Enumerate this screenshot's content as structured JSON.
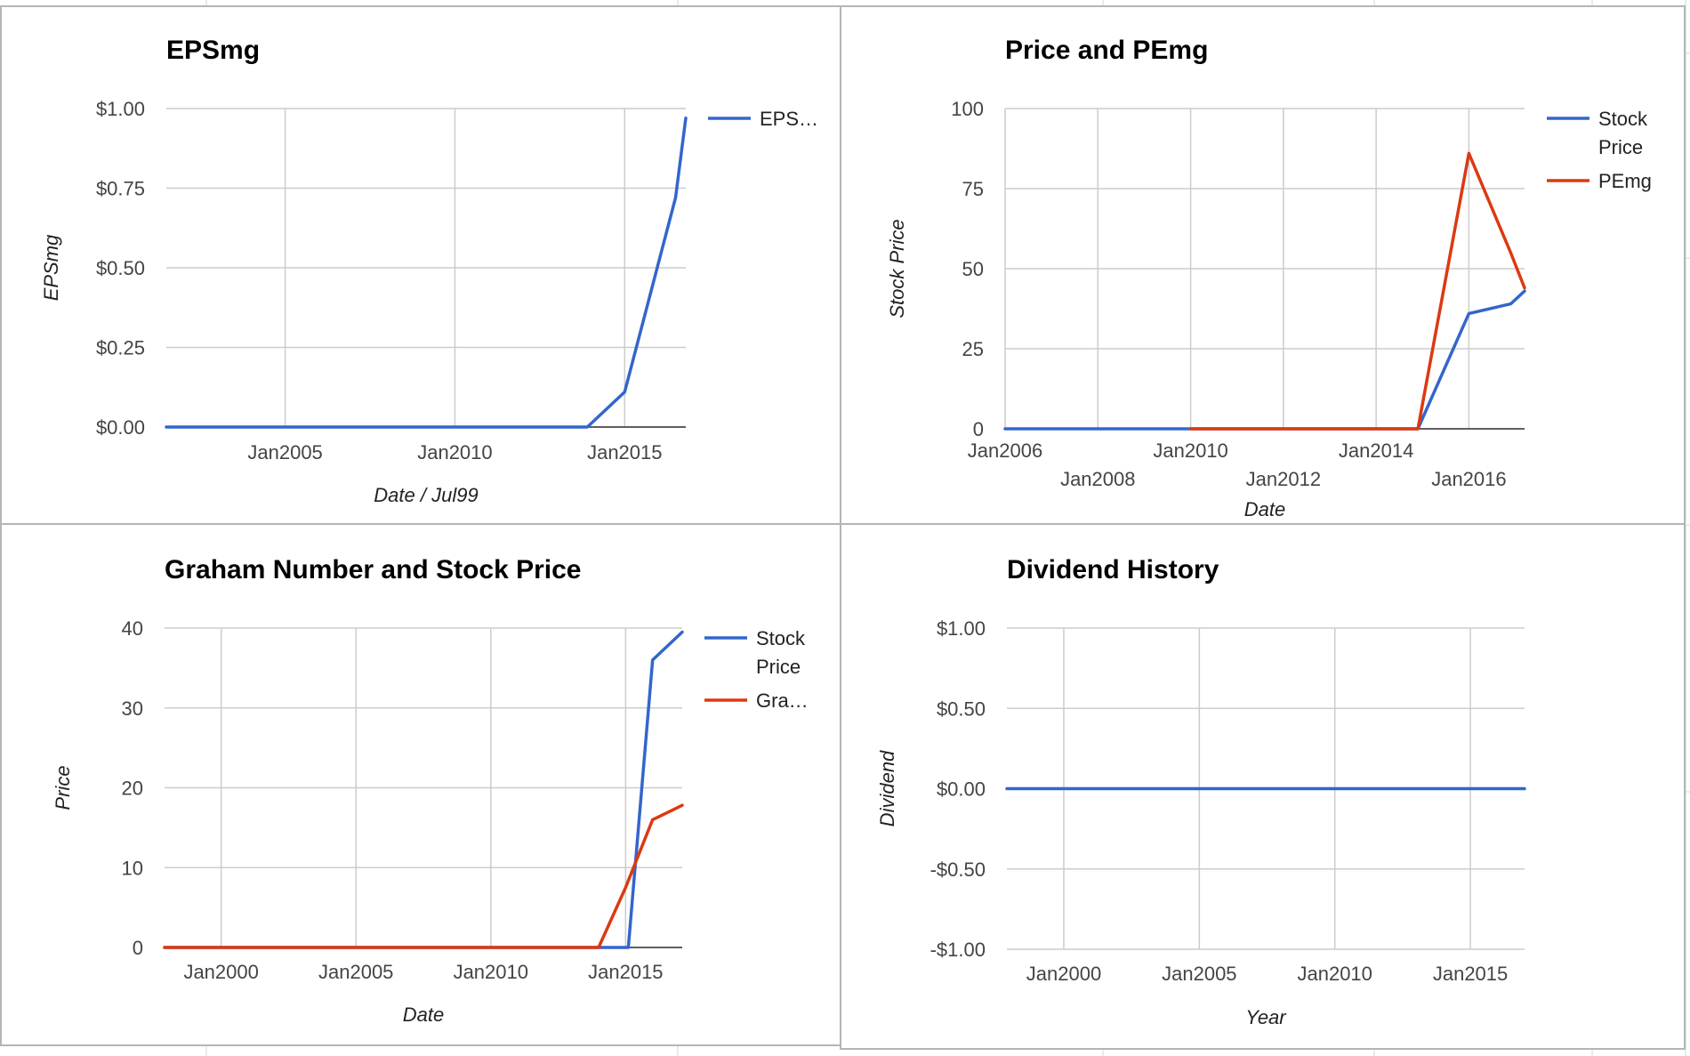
{
  "colors": {
    "series_blue": "#3366cc",
    "series_red": "#dc3912",
    "grid": "#cccccc",
    "panel_border": "#b5b5b5",
    "sheet_grid": "#e2e2e2"
  },
  "chart_data": [
    {
      "type": "line",
      "title": "EPSmg",
      "xlabel": "Date / Jul99",
      "ylabel": "EPSmg",
      "xlim": [
        2001.5,
        2016.8
      ],
      "ylim": [
        0,
        1
      ],
      "x_ticks": [
        {
          "value": 2005,
          "label": "Jan2005"
        },
        {
          "value": 2010,
          "label": "Jan2010"
        },
        {
          "value": 2015,
          "label": "Jan2015"
        }
      ],
      "y_ticks": [
        {
          "value": 0,
          "label": "$0.00"
        },
        {
          "value": 0.25,
          "label": "$0.25"
        },
        {
          "value": 0.5,
          "label": "$0.50"
        },
        {
          "value": 0.75,
          "label": "$0.75"
        },
        {
          "value": 1,
          "label": "$1.00"
        }
      ],
      "grid": true,
      "legend_position": "right",
      "series": [
        {
          "name": "EPS…",
          "color": "#3366cc",
          "x": [
            2001.5,
            2013.9,
            2015.0,
            2016.5,
            2016.8
          ],
          "values": [
            0,
            0,
            0.11,
            0.72,
            0.97
          ]
        }
      ]
    },
    {
      "type": "line",
      "title": "Price and PEmg",
      "xlabel": "Date",
      "ylabel": "Stock Price",
      "xlim": [
        2006,
        2017.2
      ],
      "ylim": [
        0,
        100
      ],
      "x_ticks": [
        {
          "value": 2006,
          "label": "Jan2006",
          "row": 0
        },
        {
          "value": 2008,
          "label": "Jan2008",
          "row": 1
        },
        {
          "value": 2010,
          "label": "Jan2010",
          "row": 0
        },
        {
          "value": 2012,
          "label": "Jan2012",
          "row": 1
        },
        {
          "value": 2014,
          "label": "Jan2014",
          "row": 0
        },
        {
          "value": 2016,
          "label": "Jan2016",
          "row": 1
        }
      ],
      "y_ticks": [
        {
          "value": 0,
          "label": "0"
        },
        {
          "value": 25,
          "label": "25"
        },
        {
          "value": 50,
          "label": "50"
        },
        {
          "value": 75,
          "label": "75"
        },
        {
          "value": 100,
          "label": "100"
        }
      ],
      "grid": true,
      "legend_position": "right",
      "series": [
        {
          "name": "Stock Price",
          "legend_lines": [
            "Stock",
            "Price"
          ],
          "color": "#3366cc",
          "x": [
            2006,
            2014.9,
            2016.0,
            2016.9,
            2017.2
          ],
          "values": [
            0,
            0,
            36,
            39,
            43
          ]
        },
        {
          "name": "PEmg",
          "legend_lines": [
            "PEmg"
          ],
          "color": "#dc3912",
          "x": [
            2010,
            2014.9,
            2016.0,
            2016.9,
            2017.2
          ],
          "values": [
            0,
            0,
            86,
            55,
            44
          ]
        }
      ]
    },
    {
      "type": "line",
      "title": "Graham Number and Stock Price",
      "xlabel": "Date",
      "ylabel": "Price",
      "xlim": [
        1997.9,
        2017.1
      ],
      "ylim": [
        0,
        40
      ],
      "x_ticks": [
        {
          "value": 2000,
          "label": "Jan2000"
        },
        {
          "value": 2005,
          "label": "Jan2005"
        },
        {
          "value": 2010,
          "label": "Jan2010"
        },
        {
          "value": 2015,
          "label": "Jan2015"
        }
      ],
      "y_ticks": [
        {
          "value": 0,
          "label": "0"
        },
        {
          "value": 10,
          "label": "10"
        },
        {
          "value": 20,
          "label": "20"
        },
        {
          "value": 30,
          "label": "30"
        },
        {
          "value": 40,
          "label": "40"
        }
      ],
      "grid": true,
      "legend_position": "right",
      "series": [
        {
          "name": "Stock Price",
          "legend_lines": [
            "Stock",
            "Price"
          ],
          "color": "#3366cc",
          "x": [
            1997.9,
            2015.1,
            2016.0,
            2017.1
          ],
          "values": [
            0,
            0,
            36,
            39.5
          ]
        },
        {
          "name": "Gra…",
          "legend_lines": [
            "Gra…"
          ],
          "color": "#dc3912",
          "x": [
            1997.9,
            2014.0,
            2015.0,
            2016.0,
            2017.1
          ],
          "values": [
            0,
            0,
            7.5,
            16,
            17.8
          ]
        }
      ]
    },
    {
      "type": "line",
      "title": "Dividend History",
      "xlabel": "Year",
      "ylabel": "Dividend",
      "xlim": [
        1997.9,
        2017.0
      ],
      "ylim": [
        -1,
        1
      ],
      "x_ticks": [
        {
          "value": 2000,
          "label": "Jan2000"
        },
        {
          "value": 2005,
          "label": "Jan2005"
        },
        {
          "value": 2010,
          "label": "Jan2010"
        },
        {
          "value": 2015,
          "label": "Jan2015"
        }
      ],
      "y_ticks": [
        {
          "value": -1,
          "label": "-$1.00"
        },
        {
          "value": -0.5,
          "label": "-$0.50"
        },
        {
          "value": 0,
          "label": "$0.00"
        },
        {
          "value": 0.5,
          "label": "$0.50"
        },
        {
          "value": 1,
          "label": "$1.00"
        }
      ],
      "grid": true,
      "legend_position": "none",
      "series": [
        {
          "color": "#3366cc",
          "x": [
            1997.9,
            2017.0
          ],
          "values": [
            0,
            0
          ]
        }
      ]
    }
  ]
}
